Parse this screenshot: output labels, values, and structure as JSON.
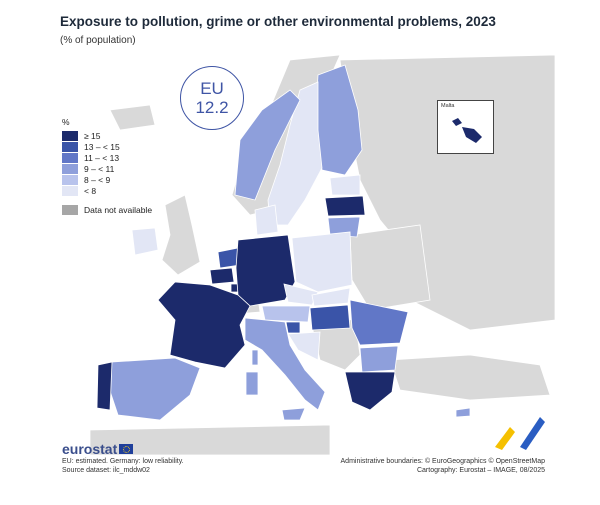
{
  "header": {
    "title": "Exposure to pollution, grime or other environmental problems, 2023",
    "subtitle": "(% of population)"
  },
  "eu_badge": {
    "label": "EU",
    "value": "12.2"
  },
  "legend": {
    "unit": "%",
    "classes": [
      {
        "label": "≥ 15",
        "color": "#1c2a6b"
      },
      {
        "label": "13 – < 15",
        "color": "#3a54a8"
      },
      {
        "label": "11 – < 13",
        "color": "#6177c7"
      },
      {
        "label": "9 – < 11",
        "color": "#8e9fdb"
      },
      {
        "label": "8 – < 9",
        "color": "#b8c3ec"
      },
      {
        "label": "< 8",
        "color": "#e2e6f5"
      }
    ],
    "not_available": {
      "label": "Data not available",
      "color": "#a6a6a6"
    }
  },
  "inset": {
    "label": "Malta"
  },
  "footer": {
    "logo": "eurostat",
    "note1": "EU: estimated. Germany: low reliability.",
    "note2": "Source dataset: ilc_mddw02",
    "credit1": "Administrative boundaries: © EuroGeographics © OpenStreetMap",
    "credit2": "Cartography: Eurostat – IMAGE, 08/2025"
  },
  "colors": {
    "non_eu_land": "#d9d9d9",
    "sea": "#ffffff",
    "border": "#ffffff"
  }
}
